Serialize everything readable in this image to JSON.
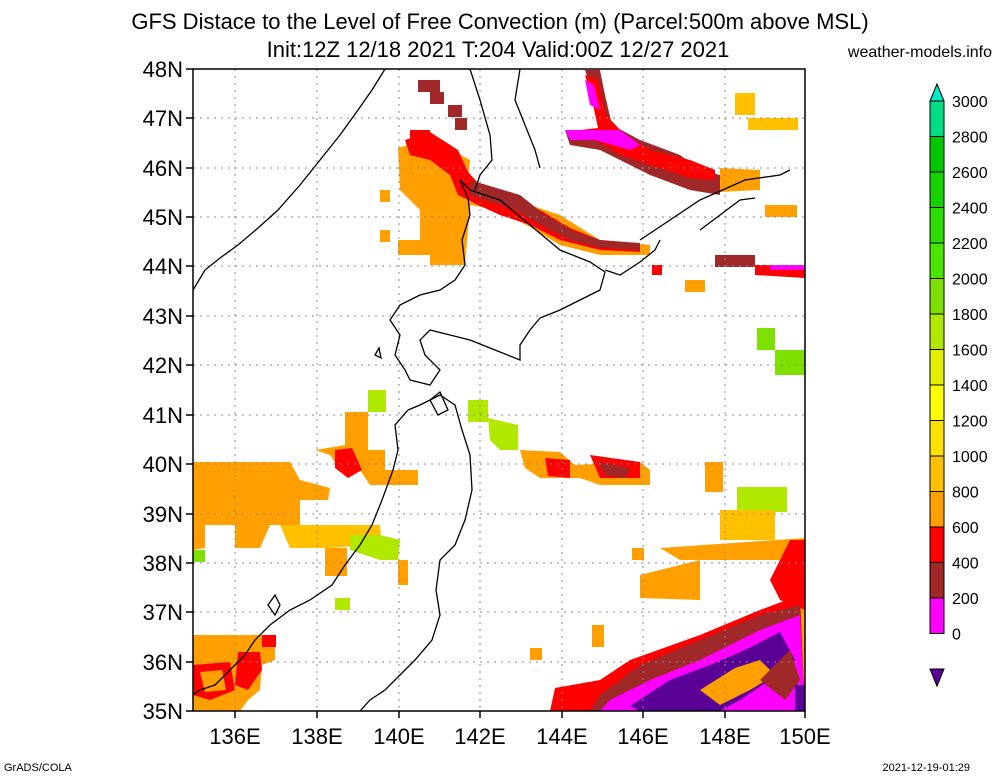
{
  "title": {
    "line1": "GFS Distace to the Level of Free Convection (m) (Parcel:500m above MSL)",
    "line2": "Init:12Z 12/18 2021 T:204 Valid:00Z 12/27 2021"
  },
  "site": "weather-models.info",
  "footer": {
    "left": "GrADS/COLA",
    "right": "2021-12-19-01:29"
  },
  "axes": {
    "lat_labels": [
      "48N",
      "47N",
      "46N",
      "45N",
      "44N",
      "43N",
      "42N",
      "41N",
      "40N",
      "39N",
      "38N",
      "37N",
      "36N",
      "35N"
    ],
    "lon_labels": [
      "136E",
      "138E",
      "140E",
      "142E",
      "144E",
      "146E",
      "148E",
      "150E"
    ]
  },
  "colorbar": {
    "labels": [
      "3000",
      "2800",
      "2600",
      "2400",
      "2200",
      "2000",
      "1800",
      "1600",
      "1400",
      "1200",
      "1000",
      "800",
      "600",
      "400",
      "200",
      "0"
    ],
    "colors": [
      "#00eacc",
      "#00dc84",
      "#00c800",
      "#16d200",
      "#2cdc00",
      "#4ae400",
      "#7ee000",
      "#b0e800",
      "#e0f000",
      "#ffff00",
      "#ffe000",
      "#ffc000",
      "#ffa000",
      "#ff0000",
      "#a02828",
      "#ff00ff",
      "#5a0096"
    ]
  },
  "icons": {
    "colorbar_top": "triangle-up-icon",
    "colorbar_bottom": "triangle-down-icon"
  }
}
